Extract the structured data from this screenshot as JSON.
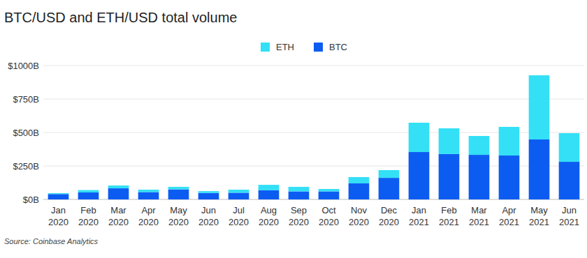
{
  "chart_data": {
    "type": "bar",
    "title": "BTC/USD and ETH/USD total volume",
    "source": "Source: Coinbase Analytics",
    "categories": [
      "Jan 2020",
      "Feb 2020",
      "Mar 2020",
      "Apr 2020",
      "May 2020",
      "Jun 2020",
      "Jul 2020",
      "Aug 2020",
      "Sep 2020",
      "Oct 2020",
      "Nov 2020",
      "Dec 2020",
      "Jan 2021",
      "Feb 2021",
      "Mar 2021",
      "Apr 2021",
      "May 2021",
      "Jun 2021"
    ],
    "series": [
      {
        "name": "BTC",
        "color": "#0d5cf2",
        "values": [
          40,
          52,
          83,
          55,
          75,
          48,
          50,
          68,
          60,
          60,
          120,
          161,
          354,
          339,
          333,
          328,
          448,
          281
        ]
      },
      {
        "name": "ETH",
        "color": "#33e0f5",
        "values": [
          7,
          18,
          21,
          18,
          19,
          14,
          23,
          41,
          34,
          18,
          47,
          58,
          219,
          192,
          141,
          214,
          479,
          214
        ]
      }
    ],
    "stacked": true,
    "ylim": [
      0,
      1000
    ],
    "yticks": [
      {
        "value": 0,
        "label": "$0B"
      },
      {
        "value": 250,
        "label": "$250B"
      },
      {
        "value": 500,
        "label": "$500B"
      },
      {
        "value": 750,
        "label": "$750B"
      },
      {
        "value": 1000,
        "label": "$1000B"
      }
    ],
    "grid": true,
    "legend": "top"
  }
}
